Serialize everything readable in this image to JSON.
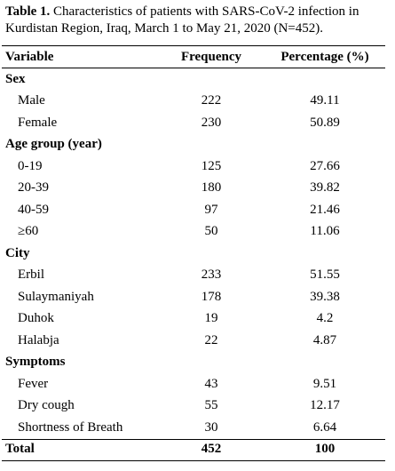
{
  "caption": {
    "label": "Table 1.",
    "text": " Characteristics of patients with SARS-CoV-2 infection in Kurdistan Region, Iraq, March 1 to May 21, 2020 (N=452)."
  },
  "header": {
    "variable": "Variable",
    "frequency": "Frequency",
    "percentage": "Percentage (%)"
  },
  "sections": [
    {
      "title": "Sex",
      "rows": [
        {
          "label": "Male",
          "frequency": "222",
          "percentage": "49.11"
        },
        {
          "label": "Female",
          "frequency": "230",
          "percentage": "50.89"
        }
      ]
    },
    {
      "title": "Age group (year)",
      "rows": [
        {
          "label": "0-19",
          "frequency": "125",
          "percentage": "27.66"
        },
        {
          "label": "20-39",
          "frequency": "180",
          "percentage": "39.82"
        },
        {
          "label": "40-59",
          "frequency": "97",
          "percentage": "21.46"
        },
        {
          "label": "≥60",
          "frequency": "50",
          "percentage": "11.06"
        }
      ]
    },
    {
      "title": "City",
      "rows": [
        {
          "label": "Erbil",
          "frequency": "233",
          "percentage": "51.55"
        },
        {
          "label": "Sulaymaniyah",
          "frequency": "178",
          "percentage": "39.38"
        },
        {
          "label": "Duhok",
          "frequency": "19",
          "percentage": "4.2"
        },
        {
          "label": "Halabja",
          "frequency": "22",
          "percentage": "4.87"
        }
      ]
    },
    {
      "title": "Symptoms",
      "rows": [
        {
          "label": "Fever",
          "frequency": "43",
          "percentage": "9.51"
        },
        {
          "label": "Dry cough",
          "frequency": "55",
          "percentage": "12.17"
        },
        {
          "label": "Shortness of Breath",
          "frequency": "30",
          "percentage": "6.64"
        }
      ]
    }
  ],
  "total": {
    "label": "Total",
    "frequency": "452",
    "percentage": "100"
  }
}
